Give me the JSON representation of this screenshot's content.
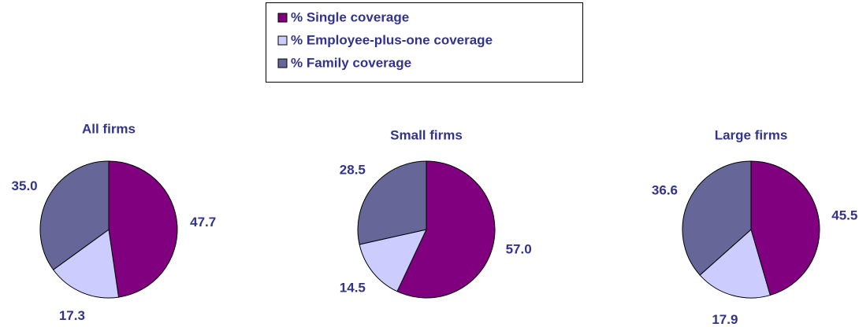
{
  "legend": [
    {
      "name": "% Single coverage",
      "color": "#800080"
    },
    {
      "name": "% Employee-plus-one coverage",
      "color": "#ccccff"
    },
    {
      "name": "% Family coverage",
      "color": "#666699"
    }
  ],
  "chart_data": [
    {
      "type": "pie",
      "title": "All firms",
      "values": [
        47.7,
        17.3,
        35.0
      ],
      "value_labels": [
        "47.7",
        "17.3",
        "35.0"
      ]
    },
    {
      "type": "pie",
      "title": "Small firms",
      "values": [
        57.0,
        14.5,
        28.5
      ],
      "value_labels": [
        "57.0",
        "14.5",
        "28.5"
      ]
    },
    {
      "type": "pie",
      "title": "Large firms",
      "values": [
        45.5,
        17.9,
        36.6
      ],
      "value_labels": [
        "45.5",
        "17.9",
        "36.6"
      ]
    }
  ]
}
